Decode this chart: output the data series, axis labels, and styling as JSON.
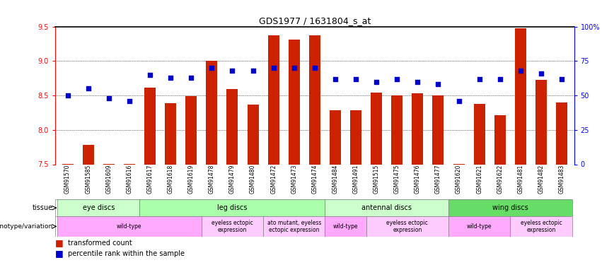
{
  "title": "GDS1977 / 1631804_s_at",
  "samples": [
    "GSM91570",
    "GSM91585",
    "GSM91609",
    "GSM91616",
    "GSM91617",
    "GSM91618",
    "GSM91619",
    "GSM91478",
    "GSM91479",
    "GSM91480",
    "GSM91472",
    "GSM91473",
    "GSM91474",
    "GSM91484",
    "GSM91491",
    "GSM91515",
    "GSM91475",
    "GSM91476",
    "GSM91477",
    "GSM91620",
    "GSM91621",
    "GSM91622",
    "GSM91481",
    "GSM91482",
    "GSM91483"
  ],
  "transformed_count": [
    7.51,
    7.78,
    7.51,
    7.51,
    8.61,
    8.39,
    8.49,
    9.0,
    8.59,
    8.37,
    9.37,
    9.31,
    9.37,
    8.28,
    8.28,
    8.54,
    8.5,
    8.53,
    8.5,
    7.51,
    8.38,
    8.21,
    9.47,
    8.73,
    8.4
  ],
  "percentile_rank": [
    50,
    55,
    48,
    46,
    65,
    63,
    63,
    70,
    68,
    68,
    70,
    70,
    70,
    62,
    62,
    60,
    62,
    60,
    58,
    46,
    62,
    62,
    68,
    66,
    62
  ],
  "ylim": [
    7.5,
    9.5
  ],
  "yticks": [
    7.5,
    8.0,
    8.5,
    9.0,
    9.5
  ],
  "right_yticks": [
    0,
    25,
    50,
    75,
    100
  ],
  "bar_color": "#cc2200",
  "dot_color": "#0000cc",
  "tissue_groups": [
    {
      "label": "eye discs",
      "start": 0,
      "end": 4,
      "color": "#ccffcc"
    },
    {
      "label": "leg discs",
      "start": 4,
      "end": 13,
      "color": "#aaffaa"
    },
    {
      "label": "antennal discs",
      "start": 13,
      "end": 19,
      "color": "#ccffcc"
    },
    {
      "label": "wing discs",
      "start": 19,
      "end": 25,
      "color": "#66dd66"
    }
  ],
  "genotype_groups": [
    {
      "label": "wild-type",
      "start": 0,
      "end": 7,
      "color": "#ffaaff"
    },
    {
      "label": "eyeless ectopic\nexpression",
      "start": 7,
      "end": 10,
      "color": "#ffccff"
    },
    {
      "label": "ato mutant, eyeless\nectopic expression",
      "start": 10,
      "end": 13,
      "color": "#ffccff"
    },
    {
      "label": "wild-type",
      "start": 13,
      "end": 15,
      "color": "#ffaaff"
    },
    {
      "label": "eyeless ectopic\nexpression",
      "start": 15,
      "end": 19,
      "color": "#ffccff"
    },
    {
      "label": "wild-type",
      "start": 19,
      "end": 22,
      "color": "#ffaaff"
    },
    {
      "label": "eyeless ectopic\nexpression",
      "start": 22,
      "end": 25,
      "color": "#ffccff"
    }
  ],
  "grid_lines": [
    8.0,
    8.5,
    9.0
  ],
  "plot_bg": "#ffffff",
  "fig_bg": "#ffffff"
}
